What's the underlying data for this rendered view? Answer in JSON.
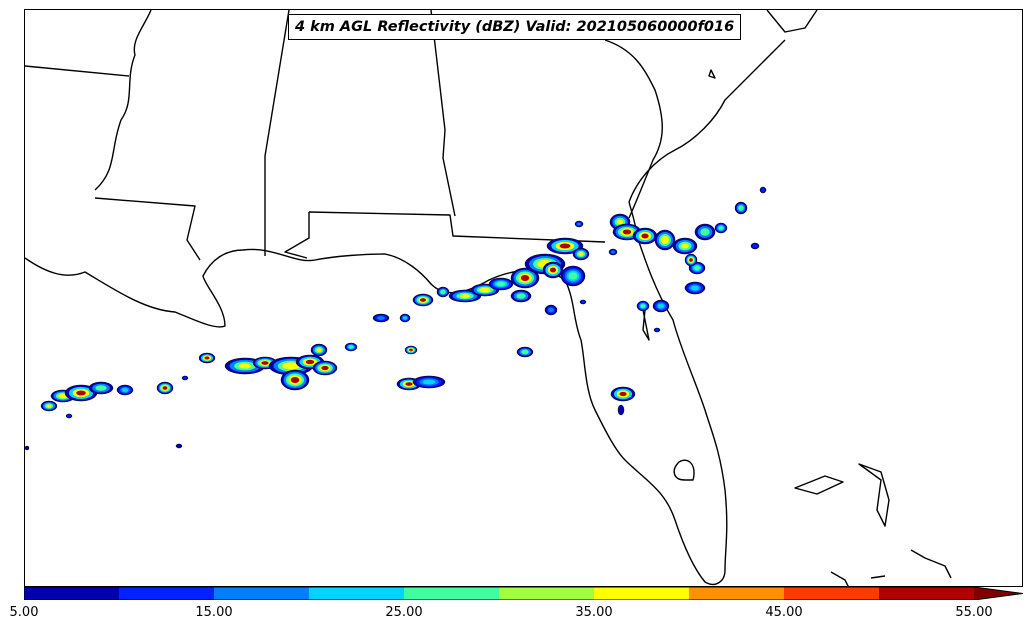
{
  "title": "4 km AGL Reflectivity (dBZ) Valid: 202105060000f016",
  "colorbar": {
    "colors": [
      "#0000b0",
      "#0022ff",
      "#0080ff",
      "#00d4ff",
      "#40ffa0",
      "#a0ff40",
      "#ffff00",
      "#ff9000",
      "#ff3a00",
      "#b00000"
    ],
    "extend_color": "#800000",
    "bounds": [
      5,
      10,
      15,
      20,
      25,
      30,
      35,
      40,
      45,
      50,
      55
    ],
    "tick_labels": [
      "5.00",
      "15.00",
      "25.00",
      "35.00",
      "45.00",
      "55.00"
    ]
  }
}
